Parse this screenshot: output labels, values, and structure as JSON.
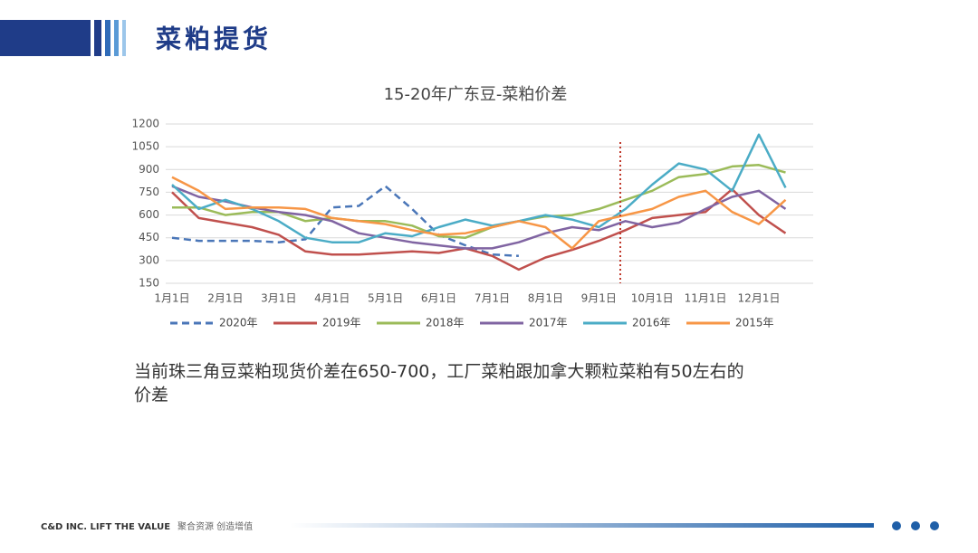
{
  "header": {
    "title": "菜粕提货"
  },
  "chart_data": {
    "type": "line",
    "title": "15-20年广东豆-菜粕价差",
    "categories": [
      "1月1日",
      null,
      "2月1日",
      null,
      "3月1日",
      null,
      "4月1日",
      null,
      "5月1日",
      null,
      "6月1日",
      null,
      "7月1日",
      null,
      "8月1日",
      null,
      "9月1日",
      null,
      "10月1日",
      null,
      "11月1日",
      null,
      "12月1日",
      null
    ],
    "series": [
      {
        "name": "2020年",
        "color": "#4a76b8",
        "line_style": "dashed",
        "values": [
          450,
          430,
          430,
          430,
          420,
          440,
          650,
          660,
          790,
          640,
          470,
          400,
          340,
          330,
          null,
          null,
          null,
          null,
          null,
          null,
          null,
          null,
          null,
          null
        ]
      },
      {
        "name": "2019年",
        "color": "#c0504d",
        "values": [
          750,
          580,
          550,
          520,
          470,
          360,
          340,
          340,
          350,
          360,
          350,
          380,
          330,
          240,
          320,
          370,
          430,
          500,
          580,
          600,
          620,
          770,
          600,
          480
        ]
      },
      {
        "name": "2018年",
        "color": "#9bbb59",
        "values": [
          650,
          650,
          600,
          620,
          620,
          560,
          580,
          560,
          560,
          530,
          460,
          450,
          520,
          560,
          590,
          600,
          640,
          700,
          760,
          850,
          870,
          920,
          930,
          880
        ]
      },
      {
        "name": "2017年",
        "color": "#8064a2",
        "values": [
          790,
          720,
          690,
          650,
          620,
          600,
          560,
          480,
          450,
          420,
          400,
          380,
          380,
          420,
          480,
          520,
          500,
          560,
          520,
          550,
          640,
          720,
          760,
          640
        ]
      },
      {
        "name": "2016年",
        "color": "#4bacc6",
        "values": [
          800,
          640,
          700,
          640,
          560,
          450,
          420,
          420,
          480,
          460,
          520,
          570,
          530,
          560,
          600,
          570,
          520,
          640,
          800,
          940,
          900,
          760,
          1130,
          780
        ]
      },
      {
        "name": "2015年",
        "color": "#f79646",
        "values": [
          850,
          760,
          640,
          650,
          650,
          640,
          580,
          560,
          540,
          500,
          470,
          480,
          520,
          560,
          520,
          380,
          560,
          600,
          640,
          720,
          760,
          620,
          540,
          700
        ]
      }
    ],
    "ylim": [
      150,
      1200
    ],
    "yticks": [
      150,
      300,
      450,
      600,
      750,
      900,
      1050,
      1200
    ],
    "grid": true,
    "legend": "bottom"
  },
  "body": {
    "lines": [
      "当前珠三角豆菜粕现货价差在650-700，工厂菜粕跟加拿大颗粒菜粕有50左右的",
      "价差"
    ]
  },
  "footer": {
    "company": "C&D INC. LIFT THE VALUE",
    "slogan": "聚合资源 创造增值"
  }
}
